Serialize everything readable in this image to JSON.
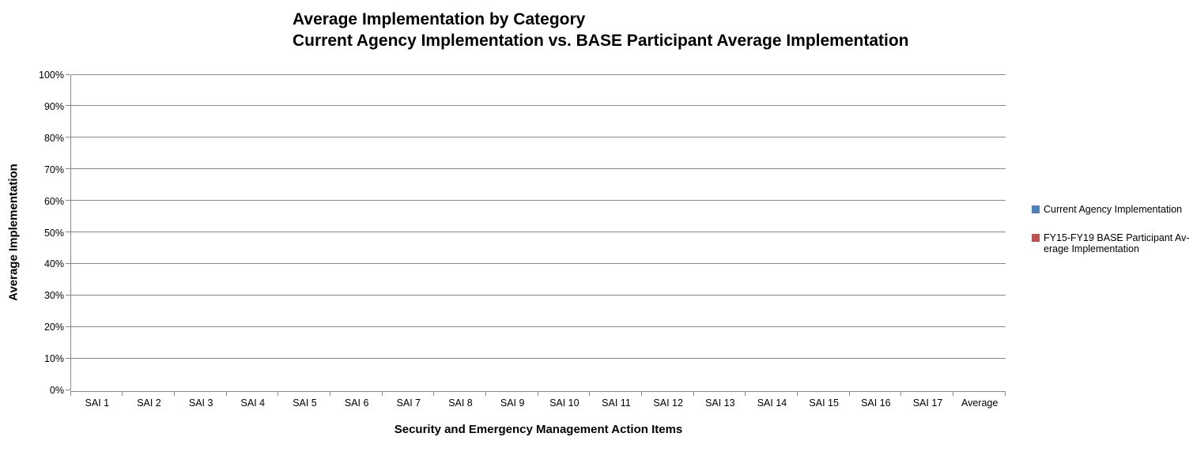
{
  "title": {
    "line1": "Average Implementation by Category",
    "line2": "Current Agency Implementation vs. BASE Participant Average Implementation"
  },
  "chart_data": {
    "type": "bar",
    "title": "Average Implementation by Category\nCurrent Agency Implementation vs. BASE Participant Average Implementation",
    "xlabel": "Security and Emergency Management Action Items",
    "ylabel": "Average Implementation",
    "categories": [
      "SAI 1",
      "SAI 2",
      "SAI 3",
      "SAI 4",
      "SAI 5",
      "SAI 6",
      "SAI 7",
      "SAI 8",
      "SAI 9",
      "SAI 10",
      "SAI 11",
      "SAI 12",
      "SAI 13",
      "SAI 14",
      "SAI 15",
      "SAI 16",
      "SAI 17",
      "Average"
    ],
    "series": [
      {
        "name": "Current Agency Implementation",
        "color": "#4F81BD",
        "values": [
          0,
          0,
          0,
          0,
          0,
          0,
          0,
          0,
          0,
          0,
          0,
          0,
          0,
          0,
          0,
          0,
          0,
          0
        ]
      },
      {
        "name": "FY15-FY19 BASE Participant Average Implementation",
        "color": "#C0504D",
        "values": [
          0,
          0,
          0,
          0,
          0,
          0,
          0,
          0,
          0,
          0,
          0,
          0,
          0,
          0,
          0,
          0,
          0,
          0
        ]
      }
    ],
    "ylim": [
      0,
      100
    ],
    "ytick_labels": [
      "0%",
      "10%",
      "20%",
      "30%",
      "40%",
      "50%",
      "60%",
      "70%",
      "80%",
      "90%",
      "100%"
    ],
    "grid": true,
    "legend_position": "right"
  },
  "legend": {
    "items": [
      {
        "lines": [
          "Current Agency Implementation"
        ],
        "color": "#4F81BD"
      },
      {
        "lines": [
          "FY15-FY19 BASE Participant Av-",
          "erage Implementation"
        ],
        "color": "#C0504D"
      }
    ]
  },
  "colors": {
    "line_gray": "#878787",
    "series_blue": "#4F81BD",
    "series_red": "#C0504D",
    "text": "#000000",
    "background": "#FFFFFF"
  }
}
